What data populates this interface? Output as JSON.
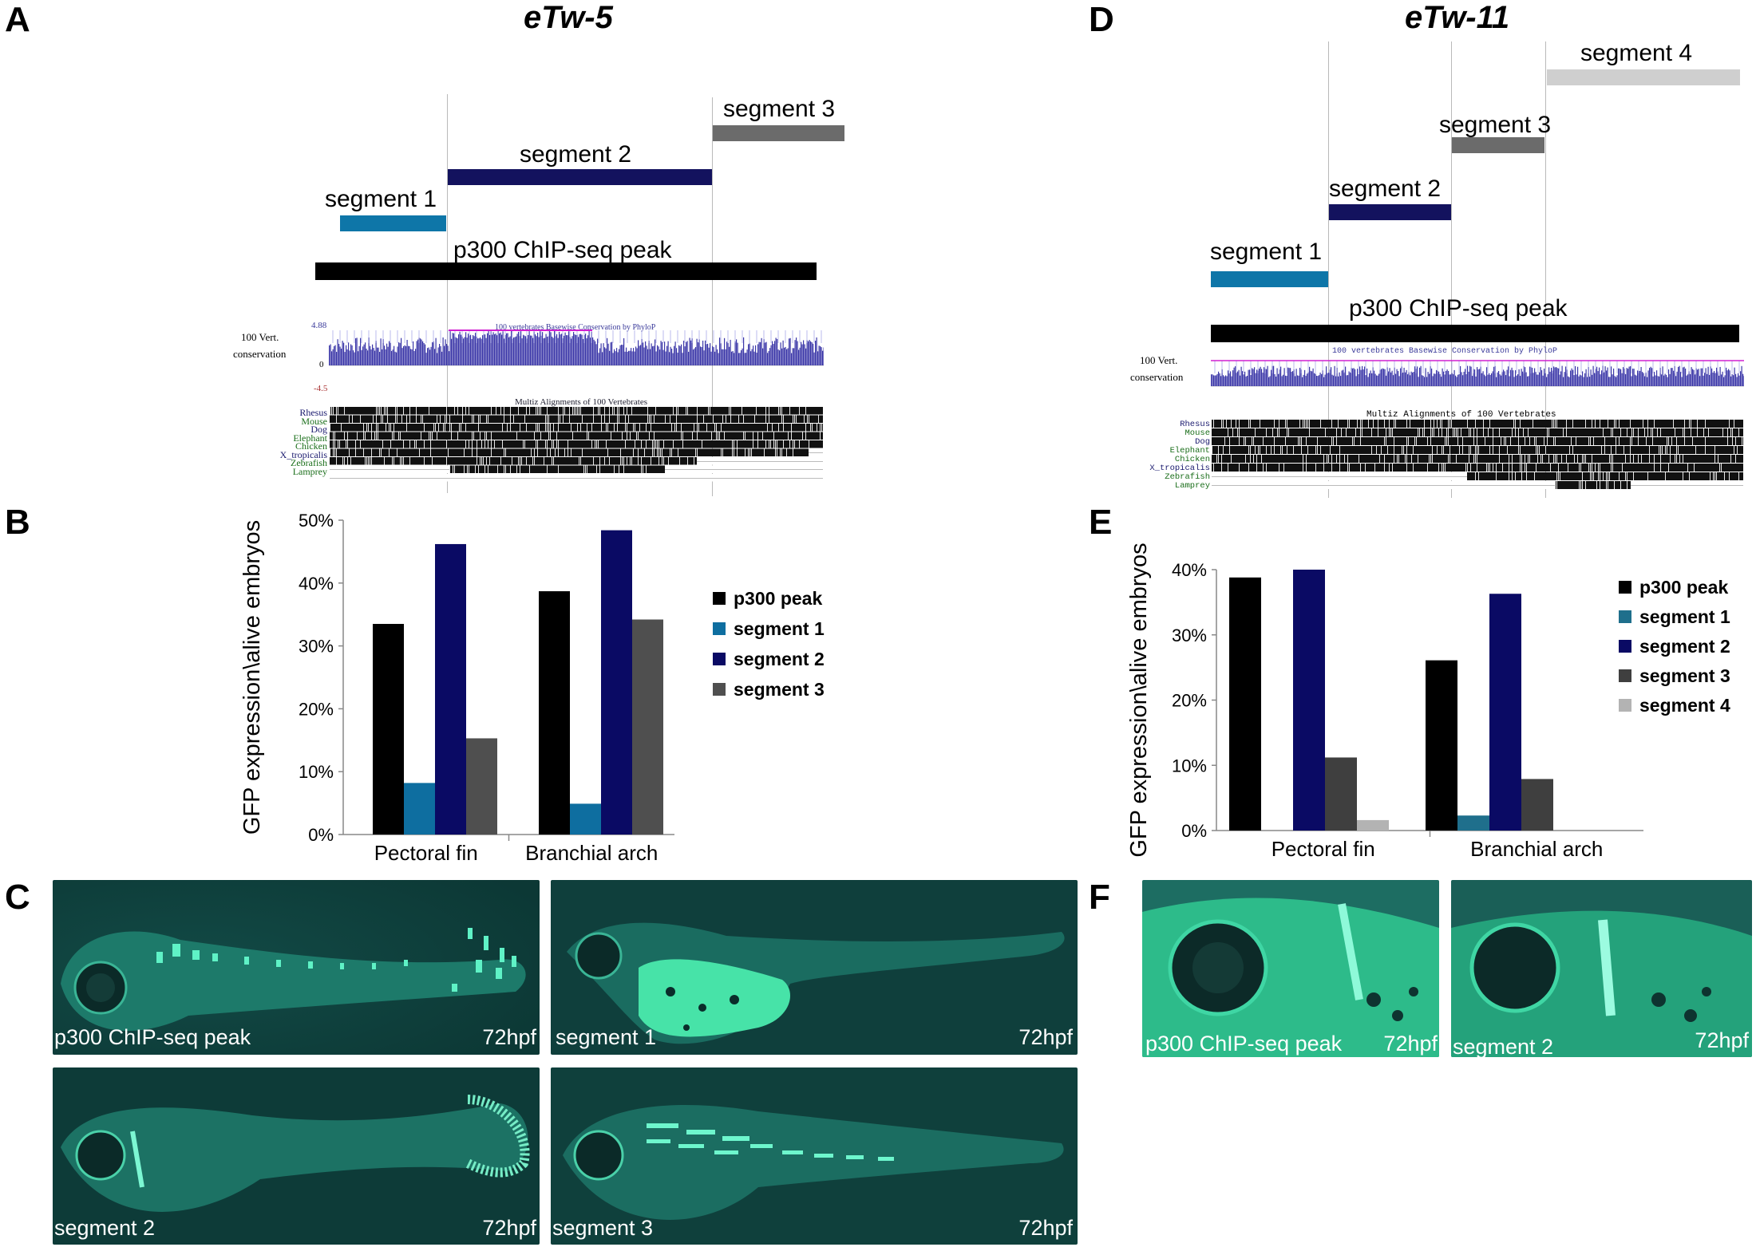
{
  "panels": {
    "A": "A",
    "B": "B",
    "C": "C",
    "D": "D",
    "E": "E",
    "F": "F"
  },
  "left": {
    "title": "eTw-5",
    "segments": [
      {
        "name": "segment 1",
        "color": "#0e76a8"
      },
      {
        "name": "segment 2",
        "color": "#13125e"
      },
      {
        "name": "segment 3",
        "color": "#6b6b6b"
      }
    ],
    "peak_label": "p300 ChIP-seq peak",
    "peak_color": "#000000",
    "track": {
      "row_label_1": "100 Vert.",
      "row_label_2": "conservation",
      "scale_top": "4.88",
      "scale_zero": "0",
      "scale_bottom": "-4.5",
      "phylop_title": "100 vertebrates Basewise Conservation by PhyloP",
      "multiz_title": "Multiz Alignments of 100 Vertebrates",
      "species": [
        "Rhesus",
        "Mouse",
        "Dog",
        "Elephant",
        "Chicken",
        "X_tropicalis",
        "Zebrafish",
        "Lamprey"
      ]
    }
  },
  "right": {
    "title": "eTw-11",
    "segments": [
      {
        "name": "segment 1",
        "color": "#0e76a8"
      },
      {
        "name": "segment 2",
        "color": "#13125e"
      },
      {
        "name": "segment 3",
        "color": "#6b6b6b"
      },
      {
        "name": "segment 4",
        "color": "#cfcfcf"
      }
    ],
    "peak_label": "p300 ChIP-seq peak",
    "track": {
      "row_label_1": "100 Vert.",
      "row_label_2": "conservation",
      "phylop_title": "100 vertebrates Basewise Conservation by PhyloP",
      "multiz_title": "Multiz Alignments of 100 Vertebrates",
      "species": [
        "Rhesus",
        "Mouse",
        "Dog",
        "Elephant",
        "Chicken",
        "X_tropicalis",
        "Zebrafish",
        "Lamprey"
      ]
    }
  },
  "chart_data": [
    {
      "type": "bar",
      "panel": "B",
      "ylabel": "GFP expression\\alive embryos",
      "categories": [
        "Pectoral fin",
        "Branchial arch"
      ],
      "ylim": [
        0,
        50
      ],
      "yticks": [
        "0%",
        "10%",
        "20%",
        "30%",
        "40%",
        "50%"
      ],
      "series": [
        {
          "name": "p300 peak",
          "color": "#000000",
          "values": [
            33.5,
            38.7
          ]
        },
        {
          "name": "segment 1",
          "color": "#0e6ea0",
          "values": [
            8.2,
            4.9
          ]
        },
        {
          "name": "segment 2",
          "color": "#0a0a64",
          "values": [
            46.2,
            48.4
          ]
        },
        {
          "name": "segment 3",
          "color": "#4f4f4f",
          "values": [
            15.3,
            34.2
          ]
        }
      ],
      "legend": "right"
    },
    {
      "type": "bar",
      "panel": "E",
      "ylabel": "GFP expression\\alive embryos",
      "categories": [
        "Pectoral fin",
        "Branchial arch"
      ],
      "ylim": [
        0,
        40
      ],
      "yticks": [
        "0%",
        "10%",
        "20%",
        "30%",
        "40%"
      ],
      "series": [
        {
          "name": "p300 peak",
          "color": "#000000",
          "values": [
            38.8,
            26.1
          ]
        },
        {
          "name": "segment 1",
          "color": "#1f6f8c",
          "values": [
            0,
            2.3
          ]
        },
        {
          "name": "segment 2",
          "color": "#0a0a64",
          "values": [
            40.0,
            36.3
          ]
        },
        {
          "name": "segment 3",
          "color": "#3f3f3f",
          "values": [
            11.2,
            7.9
          ]
        },
        {
          "name": "segment 4",
          "color": "#b3b3b3",
          "values": [
            1.6,
            0
          ]
        }
      ],
      "legend": "right"
    }
  ],
  "images": {
    "C": [
      {
        "label": "p300 ChIP-seq peak",
        "stage": "72hpf"
      },
      {
        "label": "segment 1",
        "stage": "72hpf"
      },
      {
        "label": "segment 2",
        "stage": "72hpf"
      },
      {
        "label": "segment 3",
        "stage": "72hpf"
      }
    ],
    "F": [
      {
        "label": "p300 ChIP-seq peak",
        "stage": "72hpf"
      },
      {
        "label": "segment 2",
        "stage": "72hpf"
      }
    ]
  }
}
